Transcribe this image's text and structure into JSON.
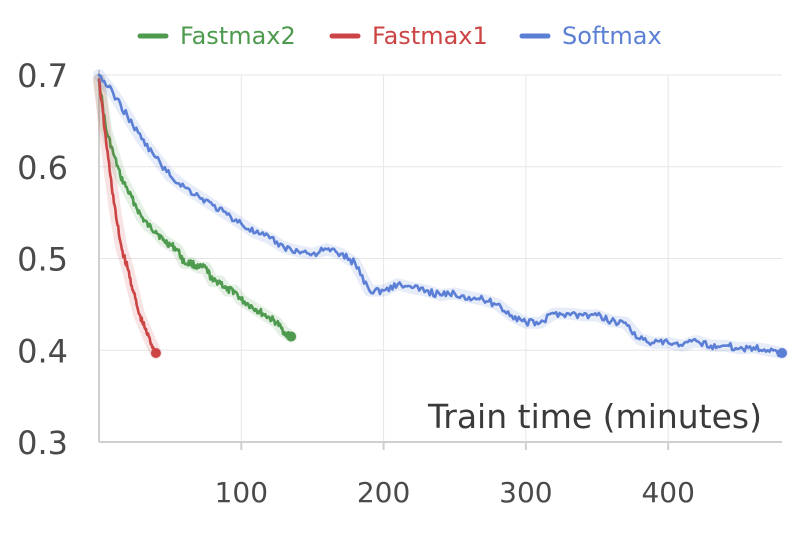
{
  "chart_data": {
    "type": "line",
    "title": "",
    "xlabel": "Train time (minutes)",
    "ylabel": "",
    "xlim": [
      0,
      480
    ],
    "ylim": [
      0.3,
      0.7
    ],
    "x_ticks": [
      100,
      200,
      300,
      400
    ],
    "y_ticks": [
      0.3,
      0.4,
      0.5,
      0.6,
      0.7
    ],
    "y_tick_labels": [
      "0.3",
      "0.4",
      "0.5",
      "0.6",
      "0.7"
    ],
    "x_tick_labels": [
      "100",
      "200",
      "300",
      "400"
    ],
    "grid": {
      "horizontal": true,
      "vertical": true
    },
    "legend_position": "top-center",
    "series": [
      {
        "name": "Fastmax2",
        "color": "#4e9a4e",
        "x": [
          0,
          5,
          10,
          15,
          20,
          25,
          30,
          35,
          40,
          45,
          50,
          55,
          60,
          65,
          70,
          75,
          80,
          85,
          90,
          95,
          100,
          105,
          110,
          115,
          120,
          125,
          130,
          135
        ],
        "y": [
          0.695,
          0.64,
          0.615,
          0.59,
          0.575,
          0.56,
          0.545,
          0.535,
          0.53,
          0.52,
          0.515,
          0.51,
          0.495,
          0.495,
          0.49,
          0.49,
          0.475,
          0.475,
          0.465,
          0.465,
          0.455,
          0.45,
          0.445,
          0.44,
          0.435,
          0.43,
          0.42,
          0.415
        ]
      },
      {
        "name": "Fastmax1",
        "color": "#cc4444",
        "x": [
          0,
          4,
          8,
          12,
          16,
          20,
          24,
          28,
          32,
          36,
          40
        ],
        "y": [
          0.695,
          0.64,
          0.59,
          0.545,
          0.51,
          0.49,
          0.465,
          0.44,
          0.425,
          0.41,
          0.397
        ]
      },
      {
        "name": "Softmax",
        "color": "#5c7fd6",
        "x": [
          0,
          10,
          20,
          30,
          40,
          50,
          60,
          70,
          80,
          90,
          100,
          110,
          120,
          130,
          140,
          150,
          160,
          170,
          180,
          190,
          200,
          210,
          220,
          230,
          240,
          250,
          260,
          270,
          280,
          290,
          300,
          310,
          320,
          330,
          340,
          350,
          360,
          370,
          380,
          390,
          400,
          410,
          420,
          430,
          440,
          450,
          460,
          470,
          480
        ],
        "y": [
          0.7,
          0.68,
          0.655,
          0.63,
          0.61,
          0.59,
          0.578,
          0.568,
          0.558,
          0.548,
          0.538,
          0.528,
          0.522,
          0.512,
          0.508,
          0.505,
          0.51,
          0.505,
          0.495,
          0.465,
          0.465,
          0.472,
          0.468,
          0.465,
          0.46,
          0.462,
          0.458,
          0.455,
          0.45,
          0.438,
          0.43,
          0.43,
          0.44,
          0.44,
          0.438,
          0.438,
          0.432,
          0.43,
          0.412,
          0.408,
          0.408,
          0.405,
          0.41,
          0.405,
          0.405,
          0.402,
          0.403,
          0.4,
          0.397
        ]
      }
    ]
  }
}
